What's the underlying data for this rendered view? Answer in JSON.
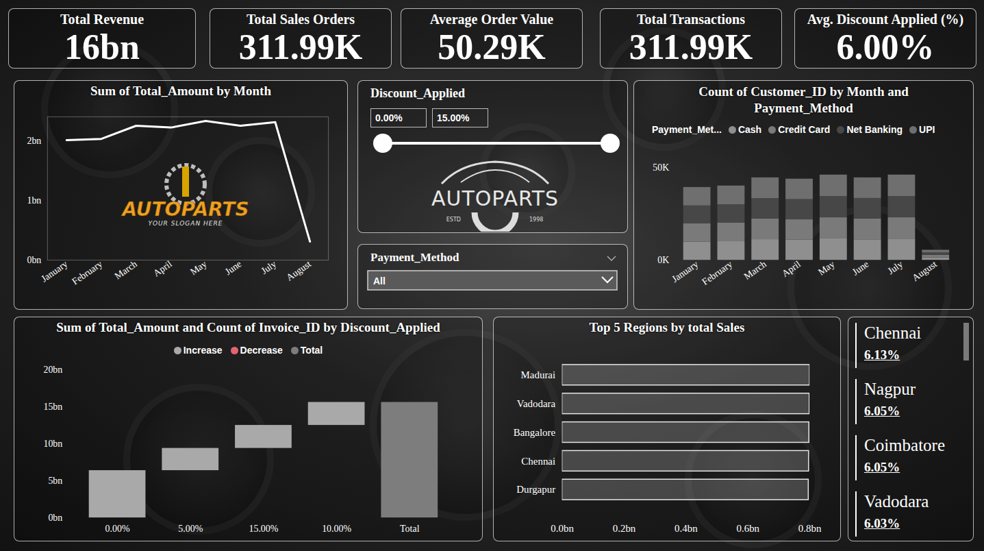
{
  "kpis": [
    {
      "title": "Total Revenue",
      "value": "16bn"
    },
    {
      "title": "Total Sales Orders",
      "value": "311.99K"
    },
    {
      "title": "Average Order Value",
      "value": "50.29K"
    },
    {
      "title": "Total Transactions",
      "value": "311.99K"
    },
    {
      "title": "Avg. Discount Applied (%)",
      "value": "6.00%"
    }
  ],
  "slicers": {
    "discount": {
      "title": "Discount_Applied",
      "from": "0.00%",
      "to": "15.00%"
    },
    "payment": {
      "title": "Payment_Method",
      "selected": "All"
    }
  },
  "logos": {
    "chart": {
      "name": "AUTOPARTS",
      "slogan": "YOUR SLOGAN HERE"
    },
    "slicer": {
      "name": "AUTOPARTS",
      "left": "ESTD",
      "right": "1998"
    }
  },
  "chart_data": [
    {
      "type": "line",
      "title": "Sum of Total_Amount by Month",
      "categories": [
        "January",
        "February",
        "March",
        "April",
        "May",
        "June",
        "July",
        "August"
      ],
      "values": [
        2.01,
        2.03,
        2.25,
        2.22,
        2.33,
        2.25,
        2.31,
        0.31
      ],
      "color": "#ffffff",
      "ylim": [
        0,
        2.4
      ],
      "yticks": [
        {
          "value": 0,
          "label": "0bn"
        },
        {
          "value": 1,
          "label": "1bn"
        },
        {
          "value": 2,
          "label": "2bn"
        }
      ],
      "grid": false
    },
    {
      "type": "bar",
      "stacked": true,
      "title": "Count of Customer_ID by Month and Payment_Method",
      "legend_title": "Payment_Met...",
      "legend": "top",
      "categories": [
        "January",
        "February",
        "March",
        "April",
        "May",
        "June",
        "July",
        "August"
      ],
      "series": [
        {
          "name": "Cash",
          "color": "#8f8f8f",
          "values": [
            9.9,
            10.1,
            11.2,
            11.0,
            11.6,
            11.1,
            11.5,
            1.4
          ]
        },
        {
          "name": "Credit Card",
          "color": "#7a7a7a",
          "values": [
            9.8,
            10.0,
            11.1,
            10.9,
            11.4,
            11.2,
            11.5,
            1.4
          ]
        },
        {
          "name": "Net Banking",
          "color": "#474747",
          "values": [
            9.7,
            9.9,
            11.0,
            10.9,
            11.4,
            11.1,
            11.4,
            1.3
          ]
        },
        {
          "name": "UPI",
          "color": "#6f6f6f",
          "values": [
            9.9,
            10.1,
            11.2,
            11.0,
            11.6,
            11.1,
            11.6,
            1.4
          ]
        }
      ],
      "ylim": [
        0,
        50
      ],
      "yticks": [
        {
          "value": 0,
          "label": "0K"
        },
        {
          "value": 50,
          "label": "50K"
        }
      ],
      "grid": false
    },
    {
      "type": "waterfall",
      "title": "Sum of Total_Amount and Count of Invoice_ID by Discount_Applied",
      "legend": "top",
      "categories": [
        "0.00%",
        "5.00%",
        "15.00%",
        "10.00%",
        "Total"
      ],
      "series": [
        {
          "name": "Increase",
          "color": "#a9a9a9",
          "values": [
            6.4,
            3.0,
            3.1,
            3.1,
            null
          ]
        },
        {
          "name": "Decrease",
          "color": "#e5636f",
          "values": [
            null,
            null,
            null,
            null,
            null
          ]
        },
        {
          "name": "Total",
          "color": "#7d7d7d",
          "values": [
            null,
            null,
            null,
            null,
            15.6
          ]
        }
      ],
      "ylim": [
        0,
        20
      ],
      "yticks": [
        {
          "value": 0,
          "label": "0bn"
        },
        {
          "value": 5,
          "label": "5bn"
        },
        {
          "value": 10,
          "label": "10bn"
        },
        {
          "value": 15,
          "label": "15bn"
        },
        {
          "value": 20,
          "label": "20bn"
        }
      ],
      "grid": false
    },
    {
      "type": "bar",
      "orientation": "horizontal",
      "title": "Top 5 Regions by total Sales",
      "categories": [
        "Madurai",
        "Vadodara",
        "Bangalore",
        "Chennai",
        "Durgapur"
      ],
      "values": [
        0.8,
        0.799,
        0.798,
        0.797,
        0.796
      ],
      "color": "#9a9a9a",
      "xlim": [
        0,
        0.8
      ],
      "xticks": [
        {
          "value": 0,
          "label": "0.0bn"
        },
        {
          "value": 0.2,
          "label": "0.2bn"
        },
        {
          "value": 0.4,
          "label": "0.4bn"
        },
        {
          "value": 0.6,
          "label": "0.6bn"
        },
        {
          "value": 0.8,
          "label": "0.8bn"
        }
      ],
      "grid": false
    }
  ],
  "region_cards": [
    {
      "name": "Chennai",
      "value": "6.13%"
    },
    {
      "name": "Nagpur",
      "value": "6.05%"
    },
    {
      "name": "Coimbatore",
      "value": "6.05%"
    },
    {
      "name": "Vadodara",
      "value": "6.03%"
    }
  ]
}
